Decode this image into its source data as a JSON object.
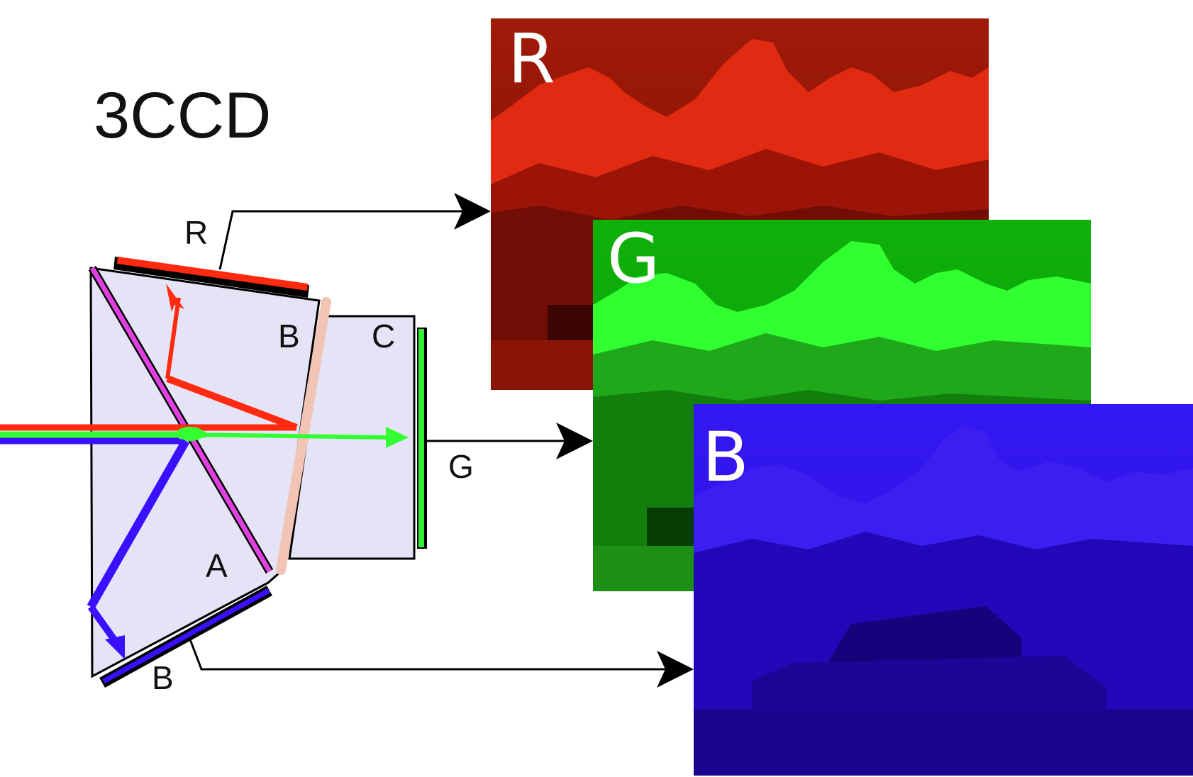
{
  "title": "3CCD",
  "prism_labels": {
    "sensor_r": "R",
    "sensor_b_bottom": "B",
    "sensor_g": "G",
    "prism_a": "A",
    "prism_b": "B",
    "prism_c": "C"
  },
  "channels": [
    {
      "letter": "R",
      "color": "#d01a05"
    },
    {
      "letter": "G",
      "color": "#12b80a"
    },
    {
      "letter": "B",
      "color": "#2a10e6"
    }
  ],
  "colors": {
    "prism_fill": "#e4e4f6",
    "dichroic_magenta": "#e040e0",
    "dichroic_pink": "#f2c4b6",
    "ray_red": "#ff2a10",
    "ray_green": "#33ff33",
    "ray_blue": "#3a10ff"
  }
}
